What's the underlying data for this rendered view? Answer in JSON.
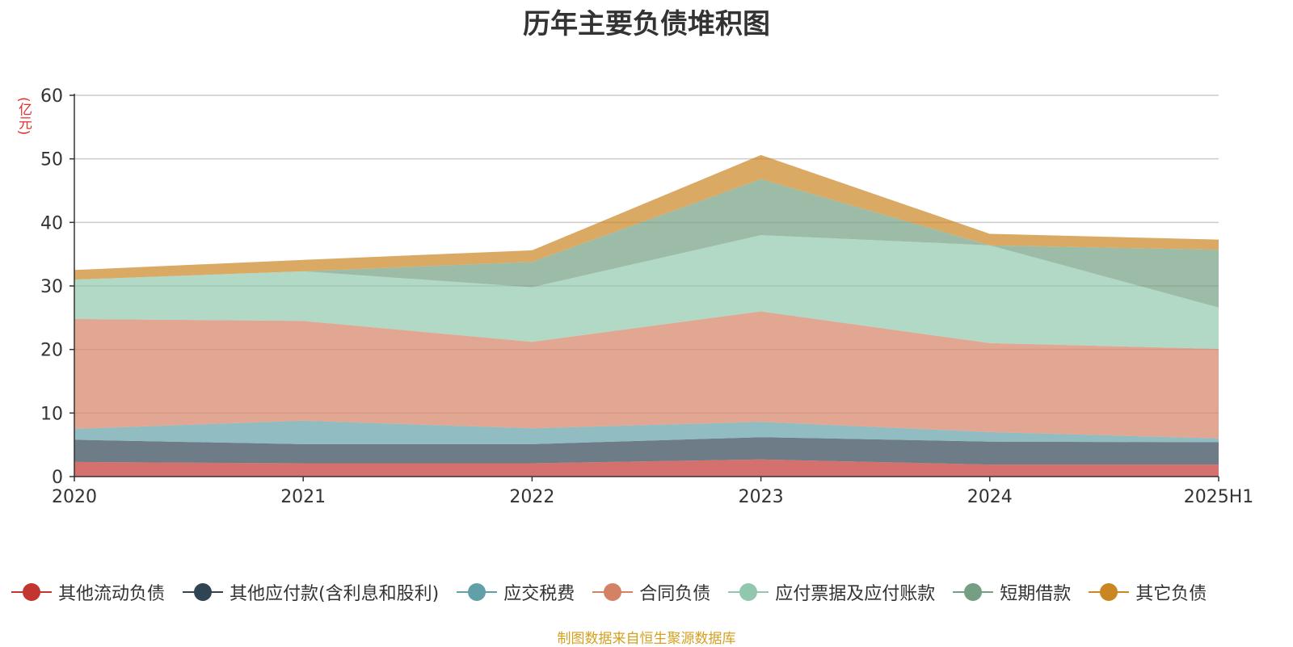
{
  "chart_data": {
    "type": "area",
    "stacked": true,
    "title": "历年主要负债堆积图",
    "y_unit": "(亿元)",
    "categories": [
      "2020",
      "2021",
      "2022",
      "2023",
      "2024",
      "2025H1"
    ],
    "ylim": [
      0,
      60
    ],
    "yticks": [
      0,
      10,
      20,
      30,
      40,
      50,
      60
    ],
    "grid": true,
    "legend_position": "bottom",
    "series": [
      {
        "name": "其他流动负债",
        "color": "#c23531",
        "values": [
          2.3,
          2.1,
          2.1,
          2.7,
          1.9,
          1.9
        ]
      },
      {
        "name": "其他应付款(含利息和股利)",
        "color": "#2f4554",
        "values": [
          3.5,
          3.0,
          3.0,
          3.5,
          3.6,
          3.5
        ]
      },
      {
        "name": "应交税费",
        "color": "#61a0a8",
        "values": [
          1.7,
          3.7,
          2.5,
          2.4,
          1.5,
          0.6
        ]
      },
      {
        "name": "合同负债",
        "color": "#d48265",
        "values": [
          17.3,
          15.7,
          13.6,
          17.4,
          14.0,
          14.1
        ]
      },
      {
        "name": "应付票据及应付账款",
        "color": "#91c7ae",
        "values": [
          6.2,
          7.8,
          8.6,
          12.0,
          15.4,
          6.5
        ]
      },
      {
        "name": "短期借款",
        "color": "#749f83",
        "values": [
          0.0,
          0.0,
          4.0,
          8.8,
          0.0,
          9.1
        ]
      },
      {
        "name": "其它负债",
        "color": "#ca8622",
        "values": [
          1.5,
          1.8,
          1.8,
          3.8,
          1.8,
          1.6
        ]
      }
    ]
  },
  "source_note": "制图数据来自恒生聚源数据库"
}
